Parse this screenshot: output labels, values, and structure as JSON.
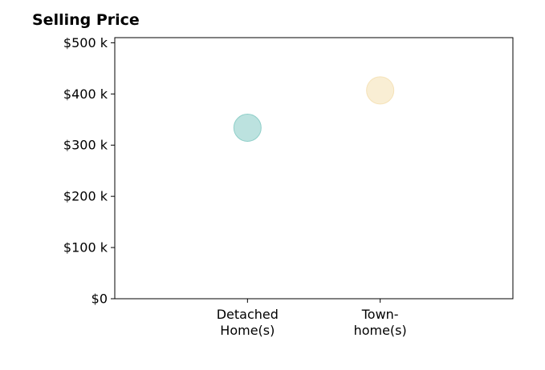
{
  "chart_data": {
    "type": "scatter",
    "title": "Selling Price",
    "xlabel": "",
    "ylabel": "",
    "categories": [
      [
        "Detached",
        "Home(s)"
      ],
      [
        "Town-",
        "home(s)"
      ]
    ],
    "values": [
      334,
      407
    ],
    "value_unit": "$ k",
    "ylim": [
      0,
      510
    ],
    "yticks": [
      0,
      100,
      200,
      300,
      400,
      500
    ],
    "ytick_labels": [
      "$0",
      "$100 k",
      "$200 k",
      "$300 k",
      "$400 k",
      "$500 k"
    ],
    "xlim": [
      -1,
      2
    ],
    "colors": [
      "#8fcfc9",
      "#f5e2b8"
    ],
    "grid": false,
    "legend": "none"
  }
}
